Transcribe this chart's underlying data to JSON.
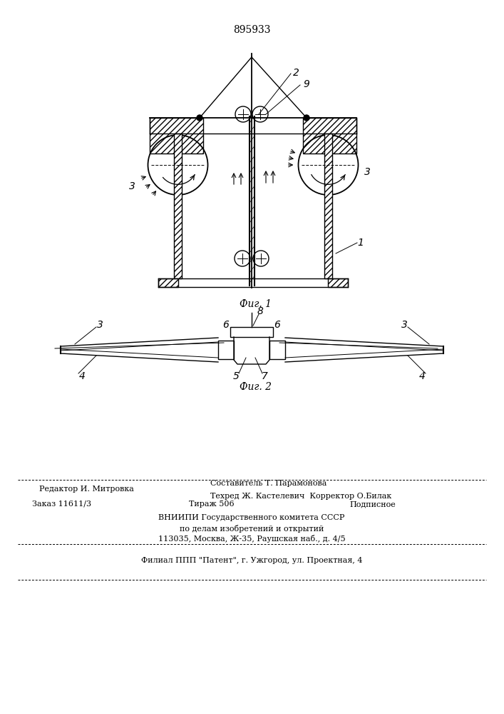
{
  "patent_number": "895933",
  "fig1_caption": "Фиг. 1",
  "fig2_caption": "Фиг. 2",
  "bg_color": "#ffffff",
  "lc": "#000000",
  "footer": {
    "line1a": "Редактор И. Митровка",
    "line1b": "Составитель Т. Парамонова",
    "line1c": "Техред Ж. Кастелевич  Корректор О.Билак",
    "line2a": "Заказ 11611/3",
    "line2b": "Тираж 506",
    "line2c": "Подписное",
    "line3": "ВНИИПИ Государственного комитета СССР",
    "line4": "по делам изобретений и открытий",
    "line5": "113035, Москва, Ж-35, Раушская наб., д. 4/5",
    "line6": "Филиал ППП \"Патент\", г. Ужгород, ул. Проектная, 4"
  }
}
